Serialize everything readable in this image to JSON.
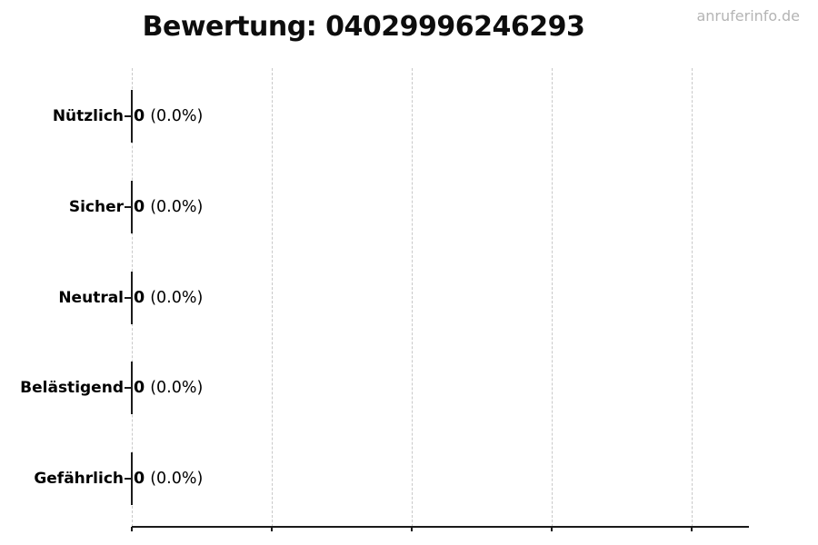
{
  "title": "Bewertung: 04029996246293",
  "watermark": "anruferinfo.de",
  "colors": {
    "text": "#000000",
    "bar": "#1a1a1a",
    "gridline": "#c9c9c9",
    "axis": "#1a1a1a",
    "watermark": "#b4b4b4",
    "background": "#ffffff"
  },
  "chart_data": {
    "type": "bar",
    "orientation": "horizontal",
    "title": "Bewertung: 04029996246293",
    "categories": [
      "Nützlich",
      "Sicher",
      "Neutral",
      "Belästigend",
      "Gefährlich"
    ],
    "values": [
      0,
      0,
      0,
      0,
      0
    ],
    "counts": [
      "0",
      "0",
      "0",
      "0",
      "0"
    ],
    "percent_labels": [
      "(0.0%)",
      "(0.0%)",
      "(0.0%)",
      "(0.0%)",
      "(0.0%)"
    ],
    "value_labels": [
      "0 (0.0%)",
      "0 (0.0%)",
      "0 (0.0%)",
      "0 (0.0%)",
      "0 (0.0%)"
    ],
    "xlabel": "",
    "ylabel": "",
    "x_tick_labels": [],
    "x_gridline_count": 5,
    "grid": true,
    "legend": false
  }
}
